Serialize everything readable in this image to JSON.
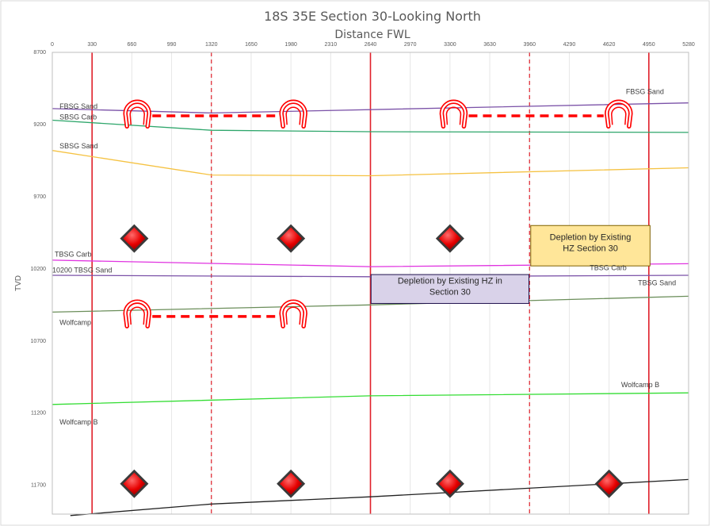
{
  "chart_data": {
    "type": "line",
    "title": "18S 35E Section 30-Looking North",
    "xlabel": "Distance FWL",
    "ylabel": "TVD",
    "xlim": [
      0,
      5280
    ],
    "ylim": [
      8700,
      11900
    ],
    "x_ticks": [
      "0",
      "330",
      "660",
      "990",
      "1320",
      "1650",
      "1980",
      "2310",
      "2640",
      "2970",
      "3300",
      "3630",
      "3960",
      "4290",
      "4620",
      "4950",
      "5280"
    ],
    "y_ticks": [
      "8700",
      "9200",
      "9700",
      "10200",
      "10700",
      "11200",
      "11700"
    ],
    "vertical_lines": [
      {
        "x": 330,
        "style": "solid"
      },
      {
        "x": 1320,
        "style": "dashed"
      },
      {
        "x": 2640,
        "style": "solid"
      },
      {
        "x": 3960,
        "style": "dashed"
      },
      {
        "x": 4950,
        "style": "solid"
      }
    ],
    "series": [
      {
        "name": "FBSG Sand",
        "color": "#7b52a8",
        "x": [
          0,
          1320,
          5280
        ],
        "y": [
          9090,
          9120,
          9050
        ]
      },
      {
        "name": "SBSG Carb",
        "color": "#2ea66b",
        "x": [
          0,
          1320,
          2640,
          5280
        ],
        "y": [
          9170,
          9240,
          9250,
          9255
        ]
      },
      {
        "name": "SBSG Sand",
        "color": "#f5c242",
        "x": [
          0,
          1320,
          2640,
          5280
        ],
        "y": [
          9380,
          9550,
          9555,
          9500
        ]
      },
      {
        "name": "TBSG Carb",
        "color": "#e033e0",
        "x": [
          0,
          2640,
          5280
        ],
        "y": [
          10140,
          10185,
          10165
        ]
      },
      {
        "name": "TBSG Sand",
        "color": "#7b52a8",
        "x": [
          0,
          2640,
          5280
        ],
        "y": [
          10245,
          10255,
          10245
        ]
      },
      {
        "name": "Wolfcamp",
        "color": "#6b8e5a",
        "x": [
          0,
          2640,
          5280
        ],
        "y": [
          10500,
          10450,
          10390
        ]
      },
      {
        "name": "Wolfcamp B",
        "color": "#33dd33",
        "x": [
          0,
          2640,
          5280
        ],
        "y": [
          11140,
          11080,
          11060
        ]
      },
      {
        "name": "",
        "color": "#222222",
        "x": [
          150,
          1320,
          2640,
          5280
        ],
        "y": [
          11910,
          11830,
          11780,
          11660
        ]
      }
    ],
    "formation_labels": [
      {
        "text": "FBSG Sand",
        "x": 60,
        "y": 9090
      },
      {
        "text": "FBSG Sand",
        "x": 4760,
        "y": 8990
      },
      {
        "text": "SBSG Carb",
        "x": 60,
        "y": 9165
      },
      {
        "text": "SBSG Sand",
        "x": 60,
        "y": 9365
      },
      {
        "text": "TBSG Carb",
        "x": 20,
        "y": 10115
      },
      {
        "text": "TBSG Carb",
        "x": 4460,
        "y": 10210
      },
      {
        "text": "10200 TBSG Sand",
        "x": 0,
        "y": 10225
      },
      {
        "text": "TBSG Sand",
        "x": 4860,
        "y": 10315
      },
      {
        "text": "Wolfcamp",
        "x": 60,
        "y": 10590
      },
      {
        "text": "Wolfcamp B",
        "x": 4720,
        "y": 11020
      },
      {
        "text": "Wolfcamp B",
        "x": 60,
        "y": 11280
      }
    ],
    "horseshoes": [
      {
        "x": 705,
        "y": 9125
      },
      {
        "x": 2000,
        "y": 9125
      },
      {
        "x": 3330,
        "y": 9125
      },
      {
        "x": 4700,
        "y": 9125
      },
      {
        "x": 705,
        "y": 10510
      },
      {
        "x": 2000,
        "y": 10510
      }
    ],
    "dashed_connectors": [
      {
        "x1": 830,
        "x2": 1875,
        "y": 9140
      },
      {
        "x1": 3455,
        "x2": 4575,
        "y": 9140
      },
      {
        "x1": 830,
        "x2": 1875,
        "y": 10530
      }
    ],
    "diamonds": [
      {
        "x": 680,
        "y": 9990
      },
      {
        "x": 1980,
        "y": 9990
      },
      {
        "x": 3300,
        "y": 9990
      },
      {
        "x": 680,
        "y": 11690
      },
      {
        "x": 1980,
        "y": 11690
      },
      {
        "x": 3300,
        "y": 11690
      },
      {
        "x": 4620,
        "y": 11690
      }
    ],
    "annotations": [
      {
        "lines": [
          "Depletion by Existing",
          "HZ Section 30"
        ],
        "fill": "#ffe699",
        "stroke": "#7f6000",
        "x1": 3970,
        "x2": 4960,
        "y1": 9900,
        "y2": 10180
      },
      {
        "lines": [
          "Depletion by Existing HZ in",
          "Section 30"
        ],
        "fill": "#d9d2e9",
        "stroke": "#20124d",
        "x1": 2645,
        "x2": 3955,
        "y1": 10240,
        "y2": 10440
      }
    ]
  }
}
